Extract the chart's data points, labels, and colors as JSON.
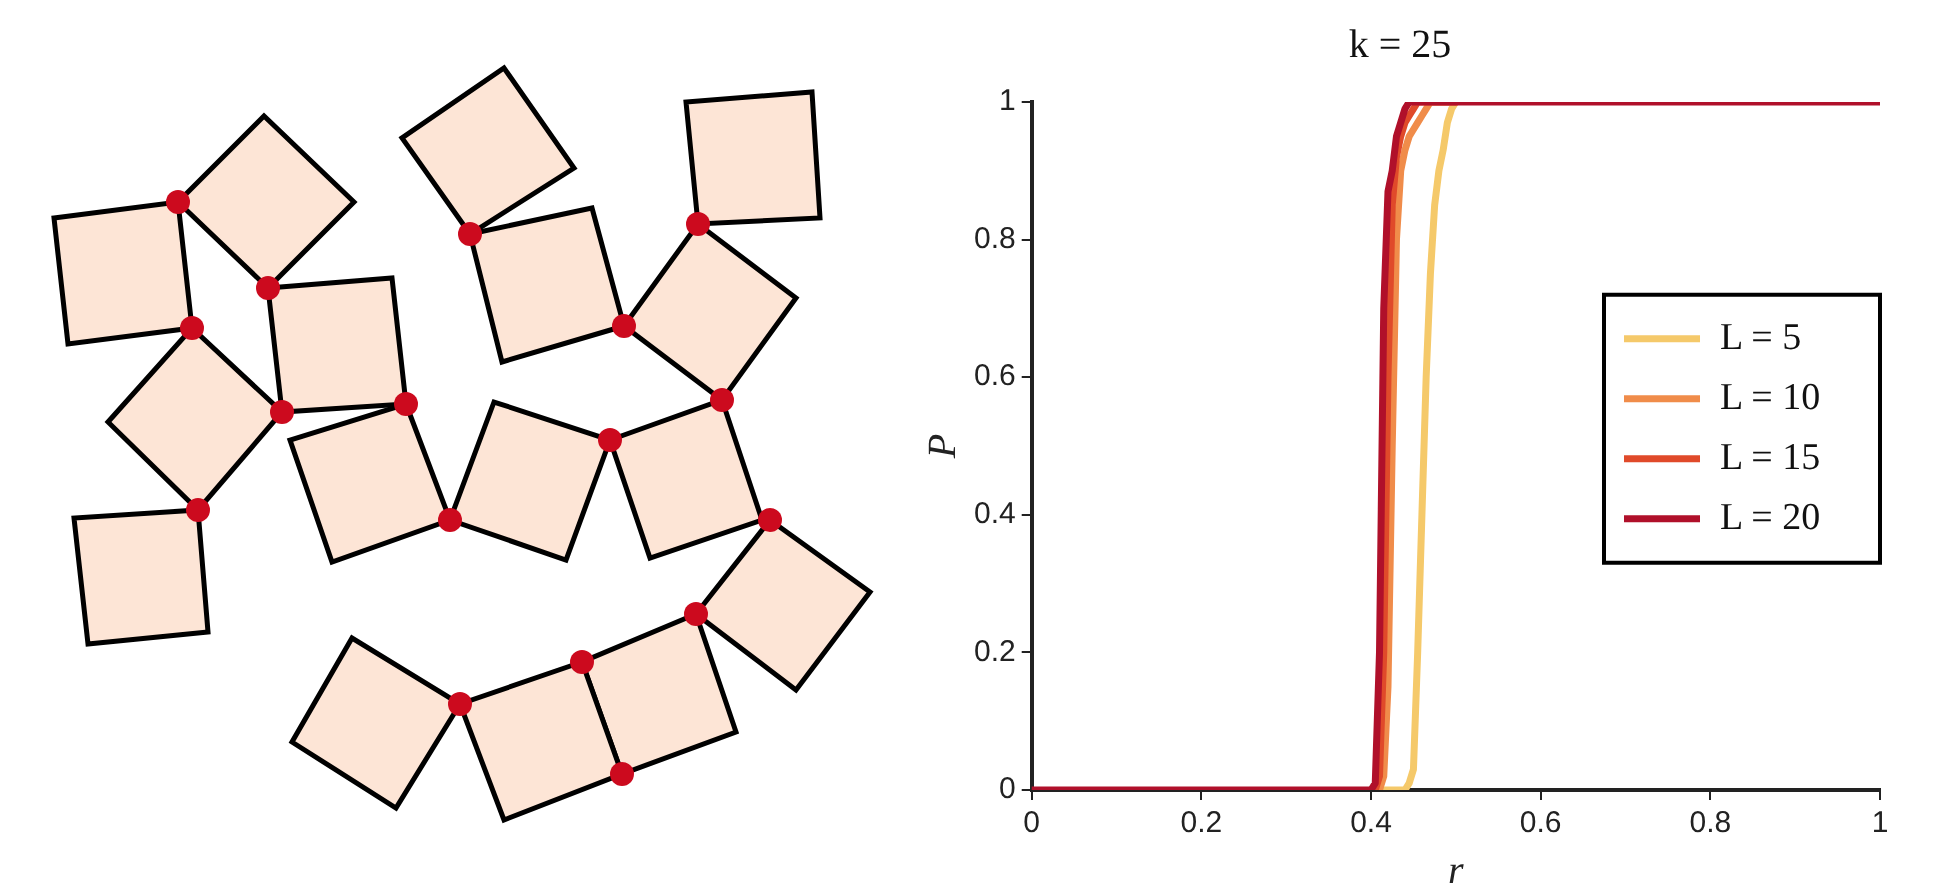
{
  "chart_data": {
    "type": "line",
    "title": "k = 25",
    "xlabel": "r",
    "ylabel": "P",
    "x": [
      0,
      0.2,
      0.4,
      0.405,
      0.41,
      0.415,
      0.42,
      0.425,
      0.43,
      0.435,
      0.44,
      0.445,
      0.45,
      0.455,
      0.46,
      0.465,
      0.47,
      0.475,
      0.48,
      0.485,
      0.49,
      0.495,
      0.5,
      0.6,
      0.8,
      1
    ],
    "series": [
      {
        "name": "L = 5",
        "color": "#f5c96a",
        "values": [
          null,
          null,
          0,
          0,
          0,
          0,
          0,
          0,
          0,
          0,
          0,
          0.01,
          0.03,
          0.2,
          0.4,
          0.6,
          0.75,
          0.85,
          0.9,
          0.93,
          0.97,
          0.99,
          1,
          null,
          null,
          null
        ]
      },
      {
        "name": "L = 10",
        "color": "#f08c4a",
        "values": [
          null,
          null,
          0,
          0,
          0,
          0.02,
          0.15,
          0.5,
          0.8,
          0.9,
          0.93,
          0.95,
          0.96,
          0.97,
          0.98,
          0.99,
          1,
          1,
          1,
          1,
          1,
          1,
          1,
          null,
          null,
          null
        ]
      },
      {
        "name": "L = 15",
        "color": "#e04a2a",
        "values": [
          null,
          null,
          0,
          0,
          0.02,
          0.2,
          0.6,
          0.85,
          0.92,
          0.95,
          0.97,
          0.98,
          0.99,
          1,
          1,
          1,
          1,
          1,
          1,
          1,
          1,
          1,
          1,
          null,
          null,
          null
        ]
      },
      {
        "name": "L = 20",
        "color": "#b0102a",
        "values": [
          0,
          0,
          0,
          0.01,
          0.2,
          0.7,
          0.87,
          0.9,
          0.95,
          0.97,
          0.99,
          1,
          1,
          1,
          1,
          1,
          1,
          1,
          1,
          1,
          1,
          1,
          1,
          1,
          1,
          1
        ]
      }
    ],
    "xlim": [
      0,
      1
    ],
    "xticks": [
      0,
      0.2,
      0.4,
      0.6,
      0.8,
      1
    ],
    "ylim": [
      0,
      1
    ],
    "yticks": [
      0,
      0.2,
      0.4,
      0.6,
      0.8,
      1
    ],
    "legend": "right",
    "marker": "none",
    "line_style": "solid"
  }
}
